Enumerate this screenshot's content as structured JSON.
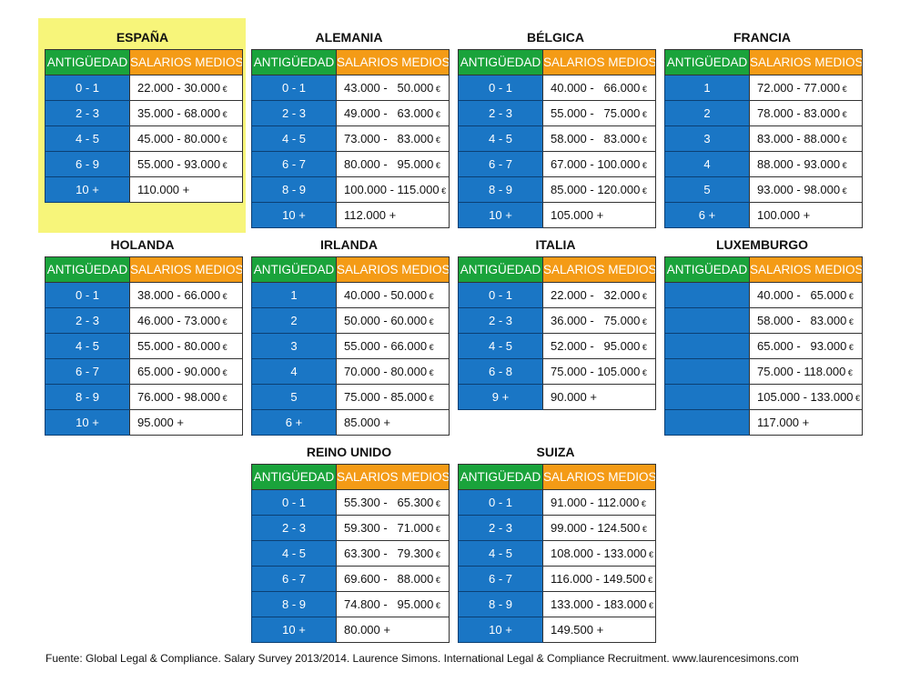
{
  "headers": {
    "ant": "ANTIGÜEDAD",
    "sal": "SALARIOS MEDIOS"
  },
  "euro": "€",
  "tables": [
    {
      "name": "ESPAÑA",
      "highlighted": true,
      "rows": [
        {
          "ant": "0 - 1",
          "sal": "22.000 - 30.000",
          "eur": true
        },
        {
          "ant": "2 - 3",
          "sal": "35.000 - 68.000",
          "eur": true
        },
        {
          "ant": "4 - 5",
          "sal": "45.000 - 80.000",
          "eur": true
        },
        {
          "ant": "6 - 9",
          "sal": "55.000 - 93.000",
          "eur": true
        },
        {
          "ant": "10 +",
          "sal": "110.000 +",
          "eur": false
        }
      ]
    },
    {
      "name": "ALEMANIA",
      "highlighted": false,
      "rows": [
        {
          "ant": "0 - 1",
          "sal": "43.000 -   50.000",
          "eur": true
        },
        {
          "ant": "2 - 3",
          "sal": "49.000 -   63.000",
          "eur": true
        },
        {
          "ant": "4 - 5",
          "sal": "73.000 -   83.000",
          "eur": true
        },
        {
          "ant": "6 - 7",
          "sal": "80.000 -   95.000",
          "eur": true
        },
        {
          "ant": "8 - 9",
          "sal": "100.000 - 115.000",
          "eur": true
        },
        {
          "ant": "10 +",
          "sal": "112.000 +",
          "eur": false
        }
      ]
    },
    {
      "name": "BÉLGICA",
      "highlighted": false,
      "rows": [
        {
          "ant": "0 - 1",
          "sal": "40.000 -   66.000",
          "eur": true
        },
        {
          "ant": "2 - 3",
          "sal": "55.000 -   75.000",
          "eur": true
        },
        {
          "ant": "4 - 5",
          "sal": "58.000 -   83.000",
          "eur": true
        },
        {
          "ant": "6 - 7",
          "sal": "67.000 - 100.000",
          "eur": true
        },
        {
          "ant": "8 - 9",
          "sal": "85.000 - 120.000",
          "eur": true
        },
        {
          "ant": "10 +",
          "sal": "105.000 +",
          "eur": false
        }
      ]
    },
    {
      "name": "FRANCIA",
      "highlighted": false,
      "rows": [
        {
          "ant": "1",
          "sal": "72.000 - 77.000",
          "eur": true
        },
        {
          "ant": "2",
          "sal": "78.000 - 83.000",
          "eur": true
        },
        {
          "ant": "3",
          "sal": "83.000 - 88.000",
          "eur": true
        },
        {
          "ant": "4",
          "sal": "88.000 - 93.000",
          "eur": true
        },
        {
          "ant": "5",
          "sal": "93.000 - 98.000",
          "eur": true
        },
        {
          "ant": "6 +",
          "sal": "100.000 +",
          "eur": false
        }
      ]
    },
    {
      "name": "HOLANDA",
      "highlighted": false,
      "rows": [
        {
          "ant": "0 - 1",
          "sal": "38.000 - 66.000",
          "eur": true
        },
        {
          "ant": "2 - 3",
          "sal": "46.000 - 73.000",
          "eur": true
        },
        {
          "ant": "4 - 5",
          "sal": "55.000 - 80.000",
          "eur": true
        },
        {
          "ant": "6 - 7",
          "sal": "65.000 - 90.000",
          "eur": true
        },
        {
          "ant": "8 - 9",
          "sal": "76.000 - 98.000",
          "eur": true
        },
        {
          "ant": "10 +",
          "sal": "95.000 +",
          "eur": false
        }
      ]
    },
    {
      "name": "IRLANDA",
      "highlighted": false,
      "rows": [
        {
          "ant": "1",
          "sal": "40.000 - 50.000",
          "eur": true
        },
        {
          "ant": "2",
          "sal": "50.000 - 60.000",
          "eur": true
        },
        {
          "ant": "3",
          "sal": "55.000 - 66.000",
          "eur": true
        },
        {
          "ant": "4",
          "sal": "70.000 - 80.000",
          "eur": true
        },
        {
          "ant": "5",
          "sal": "75.000 - 85.000",
          "eur": true
        },
        {
          "ant": "6 +",
          "sal": "85.000 +",
          "eur": false
        }
      ]
    },
    {
      "name": "ITALIA",
      "highlighted": false,
      "rows": [
        {
          "ant": "0 - 1",
          "sal": "22.000 -   32.000",
          "eur": true
        },
        {
          "ant": "2 - 3",
          "sal": "36.000 -   75.000",
          "eur": true
        },
        {
          "ant": "4 - 5",
          "sal": "52.000 -   95.000",
          "eur": true
        },
        {
          "ant": "6 - 8",
          "sal": "75.000 - 105.000",
          "eur": true
        },
        {
          "ant": "9 +",
          "sal": "90.000 +",
          "eur": false
        }
      ]
    },
    {
      "name": "LUXEMBURGO",
      "highlighted": false,
      "rows": [
        {
          "ant": "",
          "sal": "40.000 -   65.000",
          "eur": true
        },
        {
          "ant": "",
          "sal": "58.000 -   83.000",
          "eur": true
        },
        {
          "ant": "",
          "sal": "65.000 -   93.000",
          "eur": true
        },
        {
          "ant": "",
          "sal": "75.000 - 118.000",
          "eur": true
        },
        {
          "ant": "",
          "sal": "105.000 - 133.000",
          "eur": true
        },
        {
          "ant": "",
          "sal": "117.000 +",
          "eur": false
        }
      ]
    },
    {
      "name": "REINO UNIDO",
      "highlighted": false,
      "rows": [
        {
          "ant": "0 - 1",
          "sal": "55.300 -   65.300",
          "eur": true
        },
        {
          "ant": "2 - 3",
          "sal": "59.300 -   71.000",
          "eur": true
        },
        {
          "ant": "4 - 5",
          "sal": "63.300 -   79.300",
          "eur": true
        },
        {
          "ant": "6 - 7",
          "sal": "69.600 -   88.000",
          "eur": true
        },
        {
          "ant": "8 - 9",
          "sal": "74.800 -   95.000",
          "eur": true
        },
        {
          "ant": "10 +",
          "sal": "80.000 +",
          "eur": false
        }
      ]
    },
    {
      "name": "SUIZA",
      "highlighted": false,
      "rows": [
        {
          "ant": "0 - 1",
          "sal": "91.000 - 112.000",
          "eur": true
        },
        {
          "ant": "2 - 3",
          "sal": "99.000 - 124.500",
          "eur": true
        },
        {
          "ant": "4 - 5",
          "sal": "108.000 - 133.000",
          "eur": true
        },
        {
          "ant": "6 - 7",
          "sal": "116.000 - 149.500",
          "eur": true
        },
        {
          "ant": "8 - 9",
          "sal": "133.000 - 183.000",
          "eur": true
        },
        {
          "ant": "10 +",
          "sal": "149.500 +",
          "eur": false
        }
      ]
    }
  ],
  "footer": "Fuente: Global Legal & Compliance. Salary Survey 2013/2014. Laurence Simons. International Legal & Compliance Recruitment. www.laurencesimons.com"
}
